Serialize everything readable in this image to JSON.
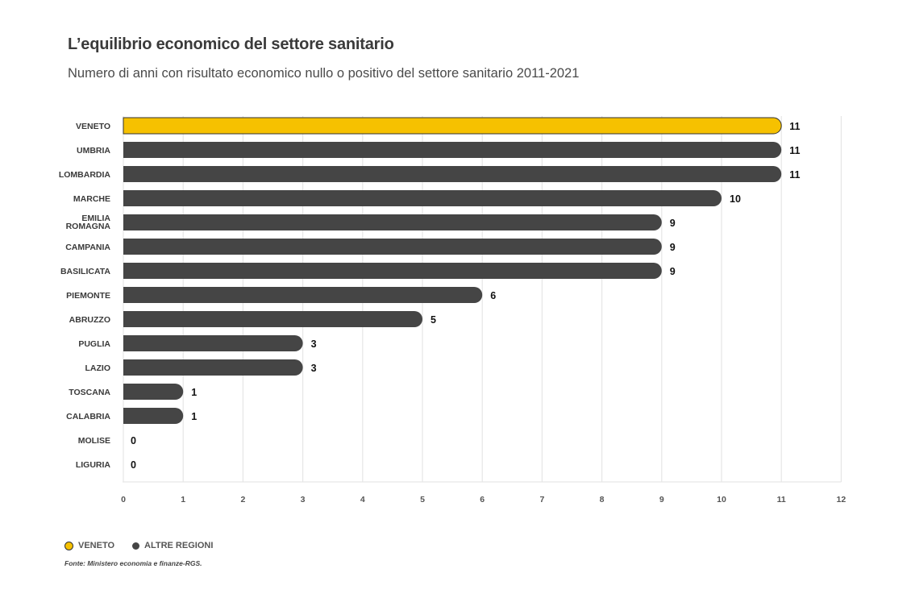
{
  "title": "L’equilibrio economico del settore sanitario",
  "subtitle": "Numero di anni con risultato economico nullo o positivo del settore sanitario 2011-2021",
  "legend": {
    "highlight_label": "VENETO",
    "others_label": "ALTRE REGIONI"
  },
  "source": "Fonte: Ministero economia e finanze-RGS.",
  "colors": {
    "highlight": "#f6c100",
    "others": "#454545",
    "grid": "#e6e6e6"
  },
  "chart_data": {
    "type": "bar",
    "orientation": "horizontal",
    "title": "L’equilibrio economico del settore sanitario",
    "subtitle": "Numero di anni con risultato economico nullo o positivo del settore sanitario 2011-2021",
    "xlabel": "",
    "ylabel": "",
    "xlim": [
      0,
      12
    ],
    "xticks": [
      0,
      1,
      2,
      3,
      4,
      5,
      6,
      7,
      8,
      9,
      10,
      11,
      12
    ],
    "grid": true,
    "legend_position": "bottom-left",
    "highlight_category": "VENETO",
    "categories": [
      [
        "VENETO"
      ],
      [
        "UMBRIA"
      ],
      [
        "LOMBARDIA"
      ],
      [
        "MARCHE"
      ],
      [
        "EMILIA",
        "ROMAGNA"
      ],
      [
        "CAMPANIA"
      ],
      [
        "BASILICATA"
      ],
      [
        "PIEMONTE"
      ],
      [
        "ABRUZZO"
      ],
      [
        "PUGLIA"
      ],
      [
        "LAZIO"
      ],
      [
        "TOSCANA"
      ],
      [
        "CALABRIA"
      ],
      [
        "MOLISE"
      ],
      [
        "LIGURIA"
      ]
    ],
    "values": [
      11,
      11,
      11,
      10,
      9,
      9,
      9,
      6,
      5,
      3,
      3,
      1,
      1,
      0,
      0
    ]
  }
}
